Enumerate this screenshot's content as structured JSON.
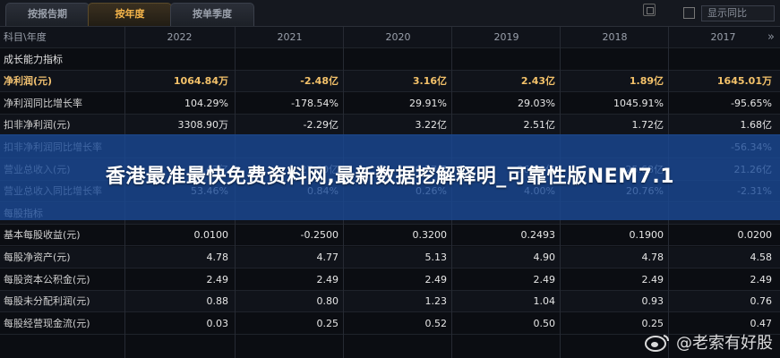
{
  "tabs": [
    {
      "label": "按报告期",
      "active": false
    },
    {
      "label": "按年度",
      "active": true
    },
    {
      "label": "按单季度",
      "active": false
    }
  ],
  "toolbar": {
    "checkbox_label": "显示同比"
  },
  "table": {
    "header": {
      "label": "科目\\年度",
      "years": [
        "2022",
        "2021",
        "2020",
        "2019",
        "2018",
        "2017"
      ]
    },
    "rows": [
      {
        "label": "成长能力指标",
        "values": [
          "",
          "",
          "",
          "",
          "",
          ""
        ],
        "type": "section"
      },
      {
        "label": "净利润(元)",
        "values": [
          "1064.84万",
          "-2.48亿",
          "3.16亿",
          "2.43亿",
          "1.89亿",
          "1645.01万"
        ],
        "type": "highlight"
      },
      {
        "label": "净利润同比增长率",
        "values": [
          "104.29%",
          "-178.54%",
          "29.91%",
          "29.03%",
          "1045.91%",
          "-95.65%"
        ],
        "type": "data"
      },
      {
        "label": "扣非净利润(元)",
        "values": [
          "3308.90万",
          "-2.29亿",
          "3.22亿",
          "2.51亿",
          "1.72亿",
          "1.68亿"
        ],
        "type": "data"
      },
      {
        "label": "扣非净利润同比增长率",
        "values": [
          "",
          "",
          "",
          "",
          "",
          "-56.34%"
        ],
        "type": "data"
      },
      {
        "label": "营业总收入(元)",
        "values": [
          "41.43亿",
          "27.00亿",
          "26.77亿",
          "26.70亿",
          "25.68亿",
          "21.26亿"
        ],
        "type": "data"
      },
      {
        "label": "营业总收入同比增长率",
        "values": [
          "53.46%",
          "0.84%",
          "0.26%",
          "4.00%",
          "20.76%",
          "-2.31%"
        ],
        "type": "data"
      },
      {
        "label": "每股指标",
        "values": [
          "",
          "",
          "",
          "",
          "",
          ""
        ],
        "type": "section"
      },
      {
        "label": "基本每股收益(元)",
        "values": [
          "0.0100",
          "-0.2500",
          "0.3200",
          "0.2493",
          "0.1900",
          "0.0200"
        ],
        "type": "data"
      },
      {
        "label": "每股净资产(元)",
        "values": [
          "4.78",
          "4.77",
          "5.13",
          "4.90",
          "4.78",
          "4.58"
        ],
        "type": "data"
      },
      {
        "label": "每股资本公积金(元)",
        "values": [
          "2.49",
          "2.49",
          "2.49",
          "2.49",
          "2.49",
          "2.49"
        ],
        "type": "data"
      },
      {
        "label": "每股未分配利润(元)",
        "values": [
          "0.88",
          "0.80",
          "1.23",
          "1.04",
          "0.93",
          "0.76"
        ],
        "type": "data"
      },
      {
        "label": "每股经营现金流(元)",
        "values": [
          "0.03",
          "0.25",
          "0.52",
          "0.50",
          "0.25",
          "0.47"
        ],
        "type": "data"
      }
    ]
  },
  "banner": {
    "title": "香港最准最快免费资料网,最新数据挖解释明_可靠性版NEM7.1"
  },
  "watermark": {
    "text": "@老索有好股"
  },
  "colors": {
    "accent": "#f4b44a",
    "banner": "#1a4a96",
    "background": "#0b0d12"
  }
}
